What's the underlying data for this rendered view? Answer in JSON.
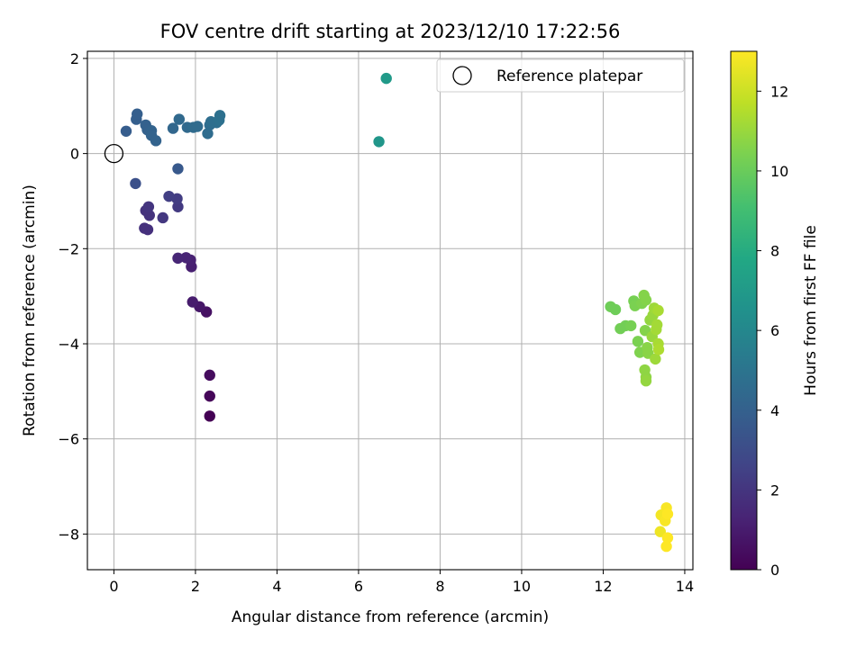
{
  "chart_data": {
    "type": "scatter",
    "title": "FOV centre drift starting at 2023/12/10 17:22:56",
    "xlabel": "Angular distance from reference (arcmin)",
    "ylabel": "Rotation from reference (arcmin)",
    "xlim": [
      -0.65,
      14.2
    ],
    "ylim": [
      -8.75,
      2.15
    ],
    "xticks": [
      0,
      2,
      4,
      6,
      8,
      10,
      12,
      14
    ],
    "yticks": [
      -8,
      -6,
      -4,
      -2,
      0,
      2
    ],
    "xtick_labels": [
      "0",
      "2",
      "4",
      "6",
      "8",
      "10",
      "12",
      "14"
    ],
    "ytick_labels": [
      "−8",
      "−6",
      "−4",
      "−2",
      "0",
      "2"
    ],
    "grid": true,
    "colormap": "viridis",
    "colorbar": {
      "label": "Hours from first FF file",
      "range": [
        0,
        13
      ],
      "ticks": [
        0,
        2,
        4,
        6,
        8,
        10,
        12
      ],
      "tick_labels": [
        "0",
        "2",
        "4",
        "6",
        "8",
        "10",
        "12"
      ]
    },
    "legend": {
      "position": "top-right",
      "entries": [
        {
          "label": "Reference platepar",
          "marker": "open-circle",
          "color": "#000000"
        }
      ]
    },
    "reference_point": {
      "x": 0,
      "y": 0
    },
    "points": [
      {
        "x": 2.35,
        "y": -5.52,
        "c": 0.0
      },
      {
        "x": 2.35,
        "y": -5.1,
        "c": 0.2
      },
      {
        "x": 2.35,
        "y": -4.66,
        "c": 0.4
      },
      {
        "x": 2.27,
        "y": -3.33,
        "c": 0.6
      },
      {
        "x": 2.1,
        "y": -3.22,
        "c": 0.8
      },
      {
        "x": 1.93,
        "y": -3.12,
        "c": 1.0
      },
      {
        "x": 1.9,
        "y": -2.38,
        "c": 1.1
      },
      {
        "x": 1.88,
        "y": -2.24,
        "c": 1.2
      },
      {
        "x": 1.77,
        "y": -2.19,
        "c": 1.3
      },
      {
        "x": 1.57,
        "y": -2.2,
        "c": 1.4
      },
      {
        "x": 0.83,
        "y": -1.6,
        "c": 1.8
      },
      {
        "x": 0.75,
        "y": -1.57,
        "c": 1.8
      },
      {
        "x": 0.87,
        "y": -1.3,
        "c": 1.9
      },
      {
        "x": 0.78,
        "y": -1.2,
        "c": 1.9
      },
      {
        "x": 0.85,
        "y": -1.12,
        "c": 2.0
      },
      {
        "x": 1.2,
        "y": -1.35,
        "c": 2.1
      },
      {
        "x": 1.57,
        "y": -1.12,
        "c": 2.2
      },
      {
        "x": 1.55,
        "y": -0.95,
        "c": 2.3
      },
      {
        "x": 1.35,
        "y": -0.9,
        "c": 2.4
      },
      {
        "x": 0.53,
        "y": -0.63,
        "c": 3.2
      },
      {
        "x": 1.57,
        "y": -0.32,
        "c": 3.6
      },
      {
        "x": 0.3,
        "y": 0.47,
        "c": 3.8
      },
      {
        "x": 0.55,
        "y": 0.72,
        "c": 3.9
      },
      {
        "x": 0.57,
        "y": 0.83,
        "c": 3.9
      },
      {
        "x": 0.78,
        "y": 0.6,
        "c": 4.0
      },
      {
        "x": 0.82,
        "y": 0.5,
        "c": 4.0
      },
      {
        "x": 0.92,
        "y": 0.48,
        "c": 4.1
      },
      {
        "x": 0.92,
        "y": 0.38,
        "c": 4.1
      },
      {
        "x": 1.03,
        "y": 0.27,
        "c": 4.1
      },
      {
        "x": 1.45,
        "y": 0.53,
        "c": 4.3
      },
      {
        "x": 1.6,
        "y": 0.72,
        "c": 4.4
      },
      {
        "x": 1.8,
        "y": 0.55,
        "c": 4.4
      },
      {
        "x": 1.95,
        "y": 0.55,
        "c": 4.5
      },
      {
        "x": 2.05,
        "y": 0.57,
        "c": 4.5
      },
      {
        "x": 2.3,
        "y": 0.42,
        "c": 4.6
      },
      {
        "x": 2.35,
        "y": 0.6,
        "c": 4.6
      },
      {
        "x": 2.38,
        "y": 0.67,
        "c": 4.7
      },
      {
        "x": 2.52,
        "y": 0.65,
        "c": 4.7
      },
      {
        "x": 2.58,
        "y": 0.7,
        "c": 4.8
      },
      {
        "x": 2.6,
        "y": 0.8,
        "c": 4.8
      },
      {
        "x": 6.5,
        "y": 0.25,
        "c": 6.8
      },
      {
        "x": 6.68,
        "y": 1.58,
        "c": 7.0
      },
      {
        "x": 12.18,
        "y": -3.22,
        "c": 10.1
      },
      {
        "x": 12.3,
        "y": -3.28,
        "c": 10.1
      },
      {
        "x": 12.42,
        "y": -3.68,
        "c": 10.2
      },
      {
        "x": 12.55,
        "y": -3.62,
        "c": 10.2
      },
      {
        "x": 12.68,
        "y": -3.62,
        "c": 10.3
      },
      {
        "x": 12.75,
        "y": -3.1,
        "c": 10.3
      },
      {
        "x": 12.78,
        "y": -3.2,
        "c": 10.4
      },
      {
        "x": 12.85,
        "y": -3.95,
        "c": 10.4
      },
      {
        "x": 12.9,
        "y": -4.18,
        "c": 10.5
      },
      {
        "x": 12.95,
        "y": -3.15,
        "c": 10.5
      },
      {
        "x": 13.0,
        "y": -2.98,
        "c": 10.6
      },
      {
        "x": 13.03,
        "y": -3.72,
        "c": 10.6
      },
      {
        "x": 13.05,
        "y": -3.08,
        "c": 10.6
      },
      {
        "x": 13.08,
        "y": -4.08,
        "c": 10.7
      },
      {
        "x": 13.1,
        "y": -4.2,
        "c": 10.7
      },
      {
        "x": 13.02,
        "y": -4.55,
        "c": 10.8
      },
      {
        "x": 13.05,
        "y": -4.7,
        "c": 10.8
      },
      {
        "x": 13.05,
        "y": -4.78,
        "c": 10.9
      },
      {
        "x": 13.15,
        "y": -3.5,
        "c": 10.9
      },
      {
        "x": 13.2,
        "y": -3.85,
        "c": 11.0
      },
      {
        "x": 13.22,
        "y": -3.4,
        "c": 11.0
      },
      {
        "x": 13.25,
        "y": -3.25,
        "c": 11.1
      },
      {
        "x": 13.28,
        "y": -4.32,
        "c": 11.1
      },
      {
        "x": 13.3,
        "y": -3.7,
        "c": 11.2
      },
      {
        "x": 13.32,
        "y": -3.6,
        "c": 11.2
      },
      {
        "x": 13.35,
        "y": -3.3,
        "c": 11.3
      },
      {
        "x": 13.35,
        "y": -4.0,
        "c": 11.3
      },
      {
        "x": 13.36,
        "y": -4.12,
        "c": 11.4
      },
      {
        "x": 13.4,
        "y": -7.95,
        "c": 12.7
      },
      {
        "x": 13.42,
        "y": -7.6,
        "c": 12.8
      },
      {
        "x": 13.52,
        "y": -7.72,
        "c": 12.9
      },
      {
        "x": 13.55,
        "y": -7.45,
        "c": 12.9
      },
      {
        "x": 13.58,
        "y": -7.58,
        "c": 13.0
      },
      {
        "x": 13.58,
        "y": -8.08,
        "c": 13.0
      },
      {
        "x": 13.55,
        "y": -8.26,
        "c": 13.0
      }
    ]
  }
}
